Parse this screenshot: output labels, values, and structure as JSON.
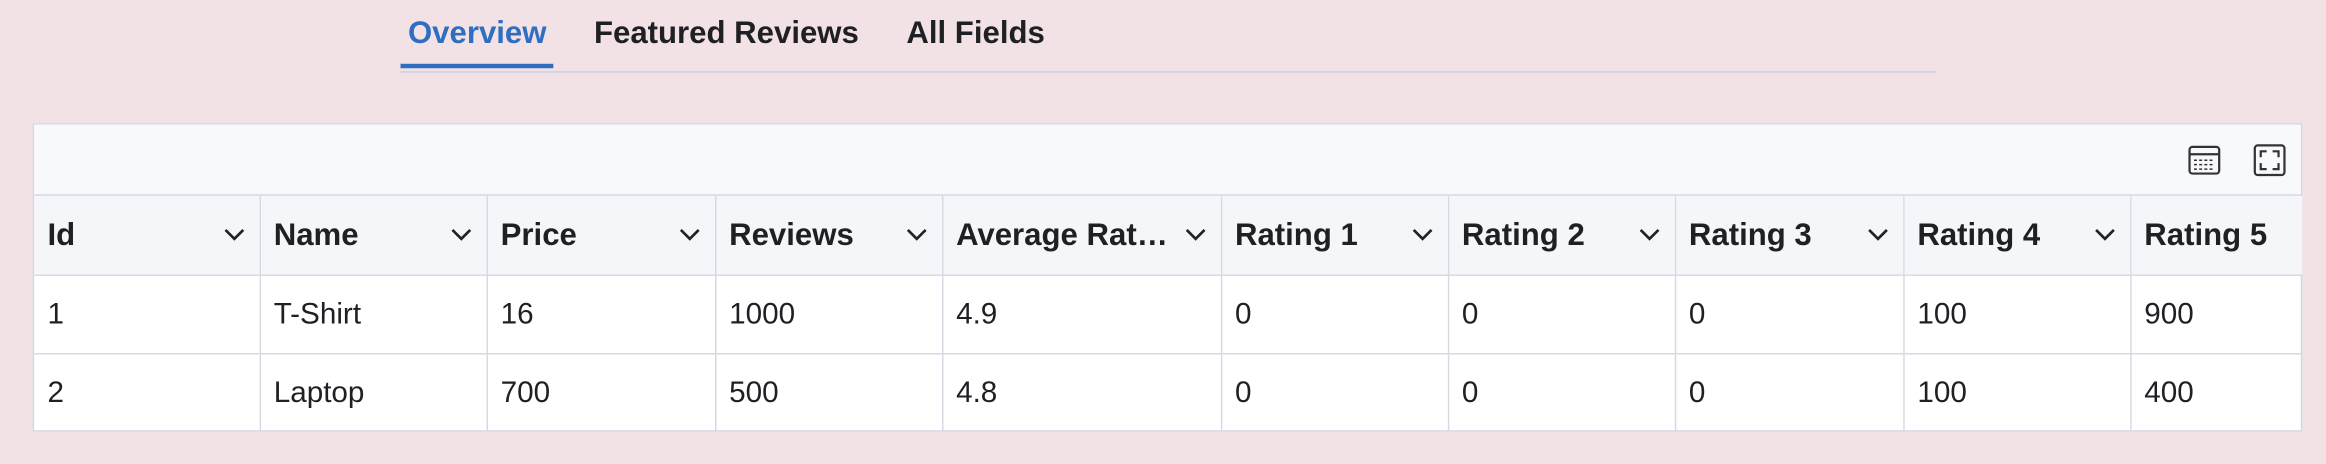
{
  "tabs": [
    "Overview",
    "Featured Reviews",
    "All Fields"
  ],
  "table": {
    "columns": [
      "Id",
      "Name",
      "Price",
      "Reviews",
      "Average Rat…",
      "Rating 1",
      "Rating 2",
      "Rating 3",
      "Rating 4",
      "Rating 5"
    ],
    "rows": [
      [
        1,
        "T-Shirt",
        16,
        1000,
        4.9,
        0,
        0,
        0,
        100,
        900
      ],
      [
        2,
        "Laptop",
        700,
        500,
        4.8,
        0,
        0,
        0,
        100,
        400
      ]
    ]
  }
}
